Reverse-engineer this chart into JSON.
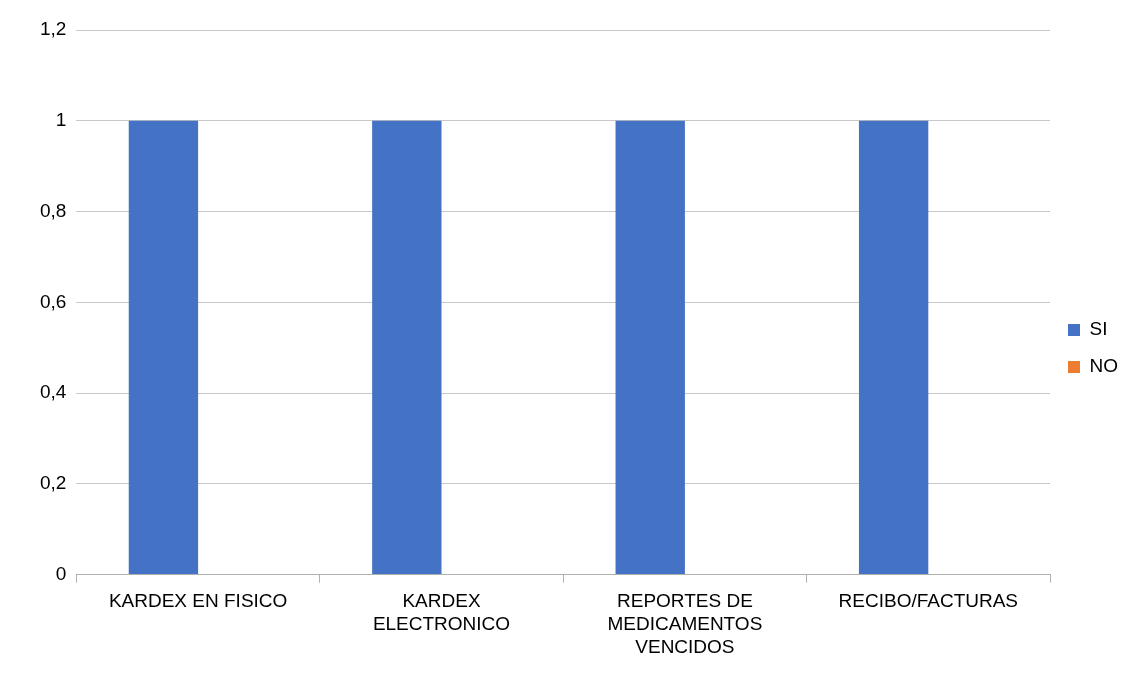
{
  "chart_data": {
    "type": "bar",
    "categories": [
      "KARDEX EN FISICO",
      "KARDEX ELECTRONICO",
      "REPORTES DE MEDICAMENTOS VENCIDOS",
      "RECIBO/FACTURAS"
    ],
    "series": [
      {
        "name": "SI",
        "color": "#4472c4",
        "values": [
          1,
          1,
          1,
          1
        ]
      },
      {
        "name": "NO",
        "color": "#ed7d31",
        "values": [
          0,
          0,
          0,
          0
        ]
      }
    ],
    "ylim": [
      0,
      1.2
    ],
    "yticks": [
      0,
      {
        "value": 0.2,
        "label": "0,2"
      },
      {
        "value": 0.4,
        "label": "0,4"
      },
      {
        "value": 0.6,
        "label": "0,6"
      },
      {
        "value": 0.8,
        "label": "0,8"
      },
      1,
      {
        "value": 1.2,
        "label": "1,2"
      }
    ],
    "grid": "y",
    "legend": "right"
  }
}
